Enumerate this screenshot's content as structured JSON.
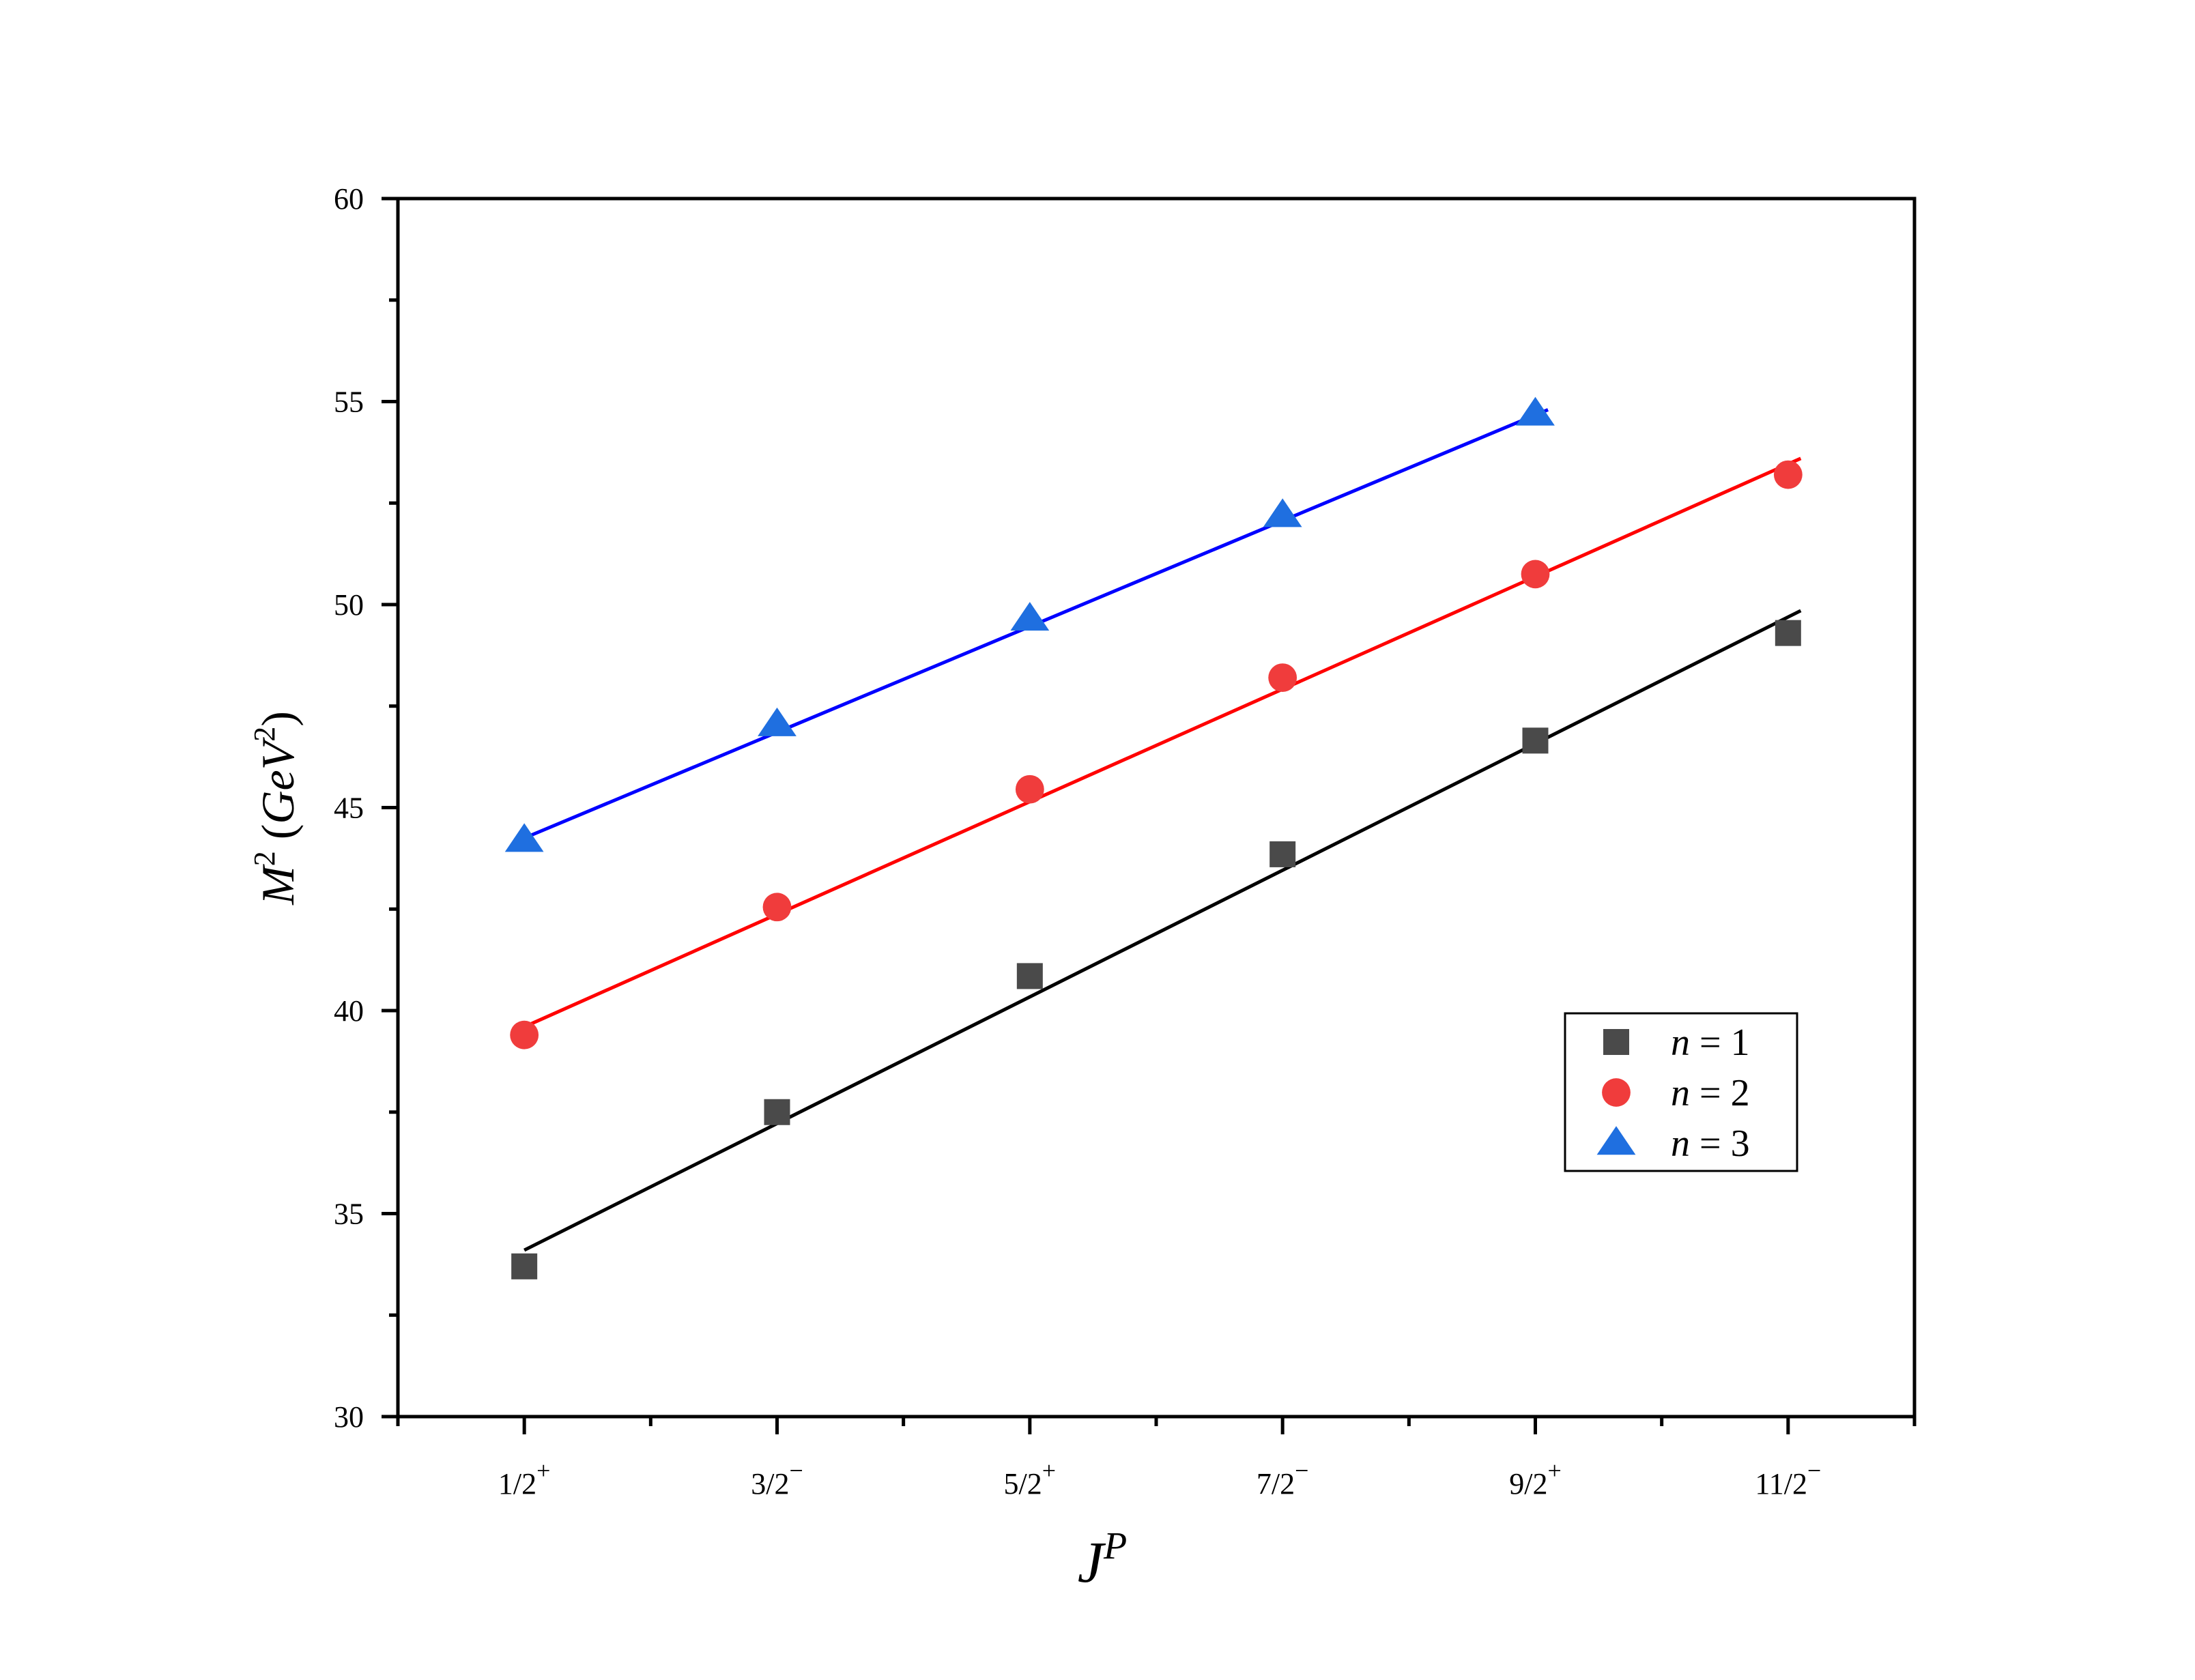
{
  "chart_data": {
    "type": "scatter",
    "xlabel": {
      "base": "J",
      "sup": "P"
    },
    "ylabel": {
      "base": "M",
      "sup": "2",
      "unit_prefix": " (",
      "unit_base": "GeV",
      "unit_sup": "2",
      "unit_suffix": ")"
    },
    "categories": [
      {
        "base": "1/2",
        "sup": "+"
      },
      {
        "base": "3/2",
        "sup": "−"
      },
      {
        "base": "5/2",
        "sup": "+"
      },
      {
        "base": "7/2",
        "sup": "−"
      },
      {
        "base": "9/2",
        "sup": "+"
      },
      {
        "base": "11/2",
        "sup": "−"
      }
    ],
    "x_positions": [
      1,
      2,
      3,
      4,
      5,
      6
    ],
    "xlim": [
      0.5,
      6.5
    ],
    "ylim": [
      30,
      60
    ],
    "yticks": [
      30,
      35,
      40,
      45,
      50,
      55,
      60
    ],
    "yticks_minor": [
      32.5,
      37.5,
      42.5,
      47.5,
      52.5,
      57.5
    ],
    "grid": false,
    "legend_position": "lower-right",
    "series": [
      {
        "name": "n = 1",
        "legend": {
          "var": "n",
          "op": "=",
          "num": "1"
        },
        "marker": "square",
        "color": "#4a4a4a",
        "line_color": "#000000",
        "x": [
          1,
          2,
          3,
          4,
          5,
          6
        ],
        "y": [
          33.7,
          37.5,
          40.85,
          43.85,
          46.65,
          49.3
        ],
        "fit": {
          "x": [
            1,
            6.05
          ],
          "y": [
            34.1,
            49.85
          ]
        }
      },
      {
        "name": "n = 2",
        "legend": {
          "var": "n",
          "op": "=",
          "num": "2"
        },
        "marker": "circle",
        "color": "#f03c3c",
        "line_color": "#ff0000",
        "x": [
          1,
          2,
          3,
          4,
          5,
          6
        ],
        "y": [
          39.4,
          42.55,
          45.45,
          48.2,
          50.75,
          53.2
        ],
        "fit": {
          "x": [
            1,
            6.05
          ],
          "y": [
            39.6,
            53.6
          ]
        }
      },
      {
        "name": "n = 3",
        "legend": {
          "var": "n",
          "op": "=",
          "num": "3"
        },
        "marker": "triangle",
        "color": "#1f6fe0",
        "line_color": "#0000ff",
        "x": [
          1,
          2,
          3,
          4,
          5
        ],
        "y": [
          44.2,
          47.05,
          49.65,
          52.2,
          54.7
        ],
        "fit": {
          "x": [
            1,
            5.05
          ],
          "y": [
            44.25,
            54.8
          ]
        }
      }
    ]
  }
}
